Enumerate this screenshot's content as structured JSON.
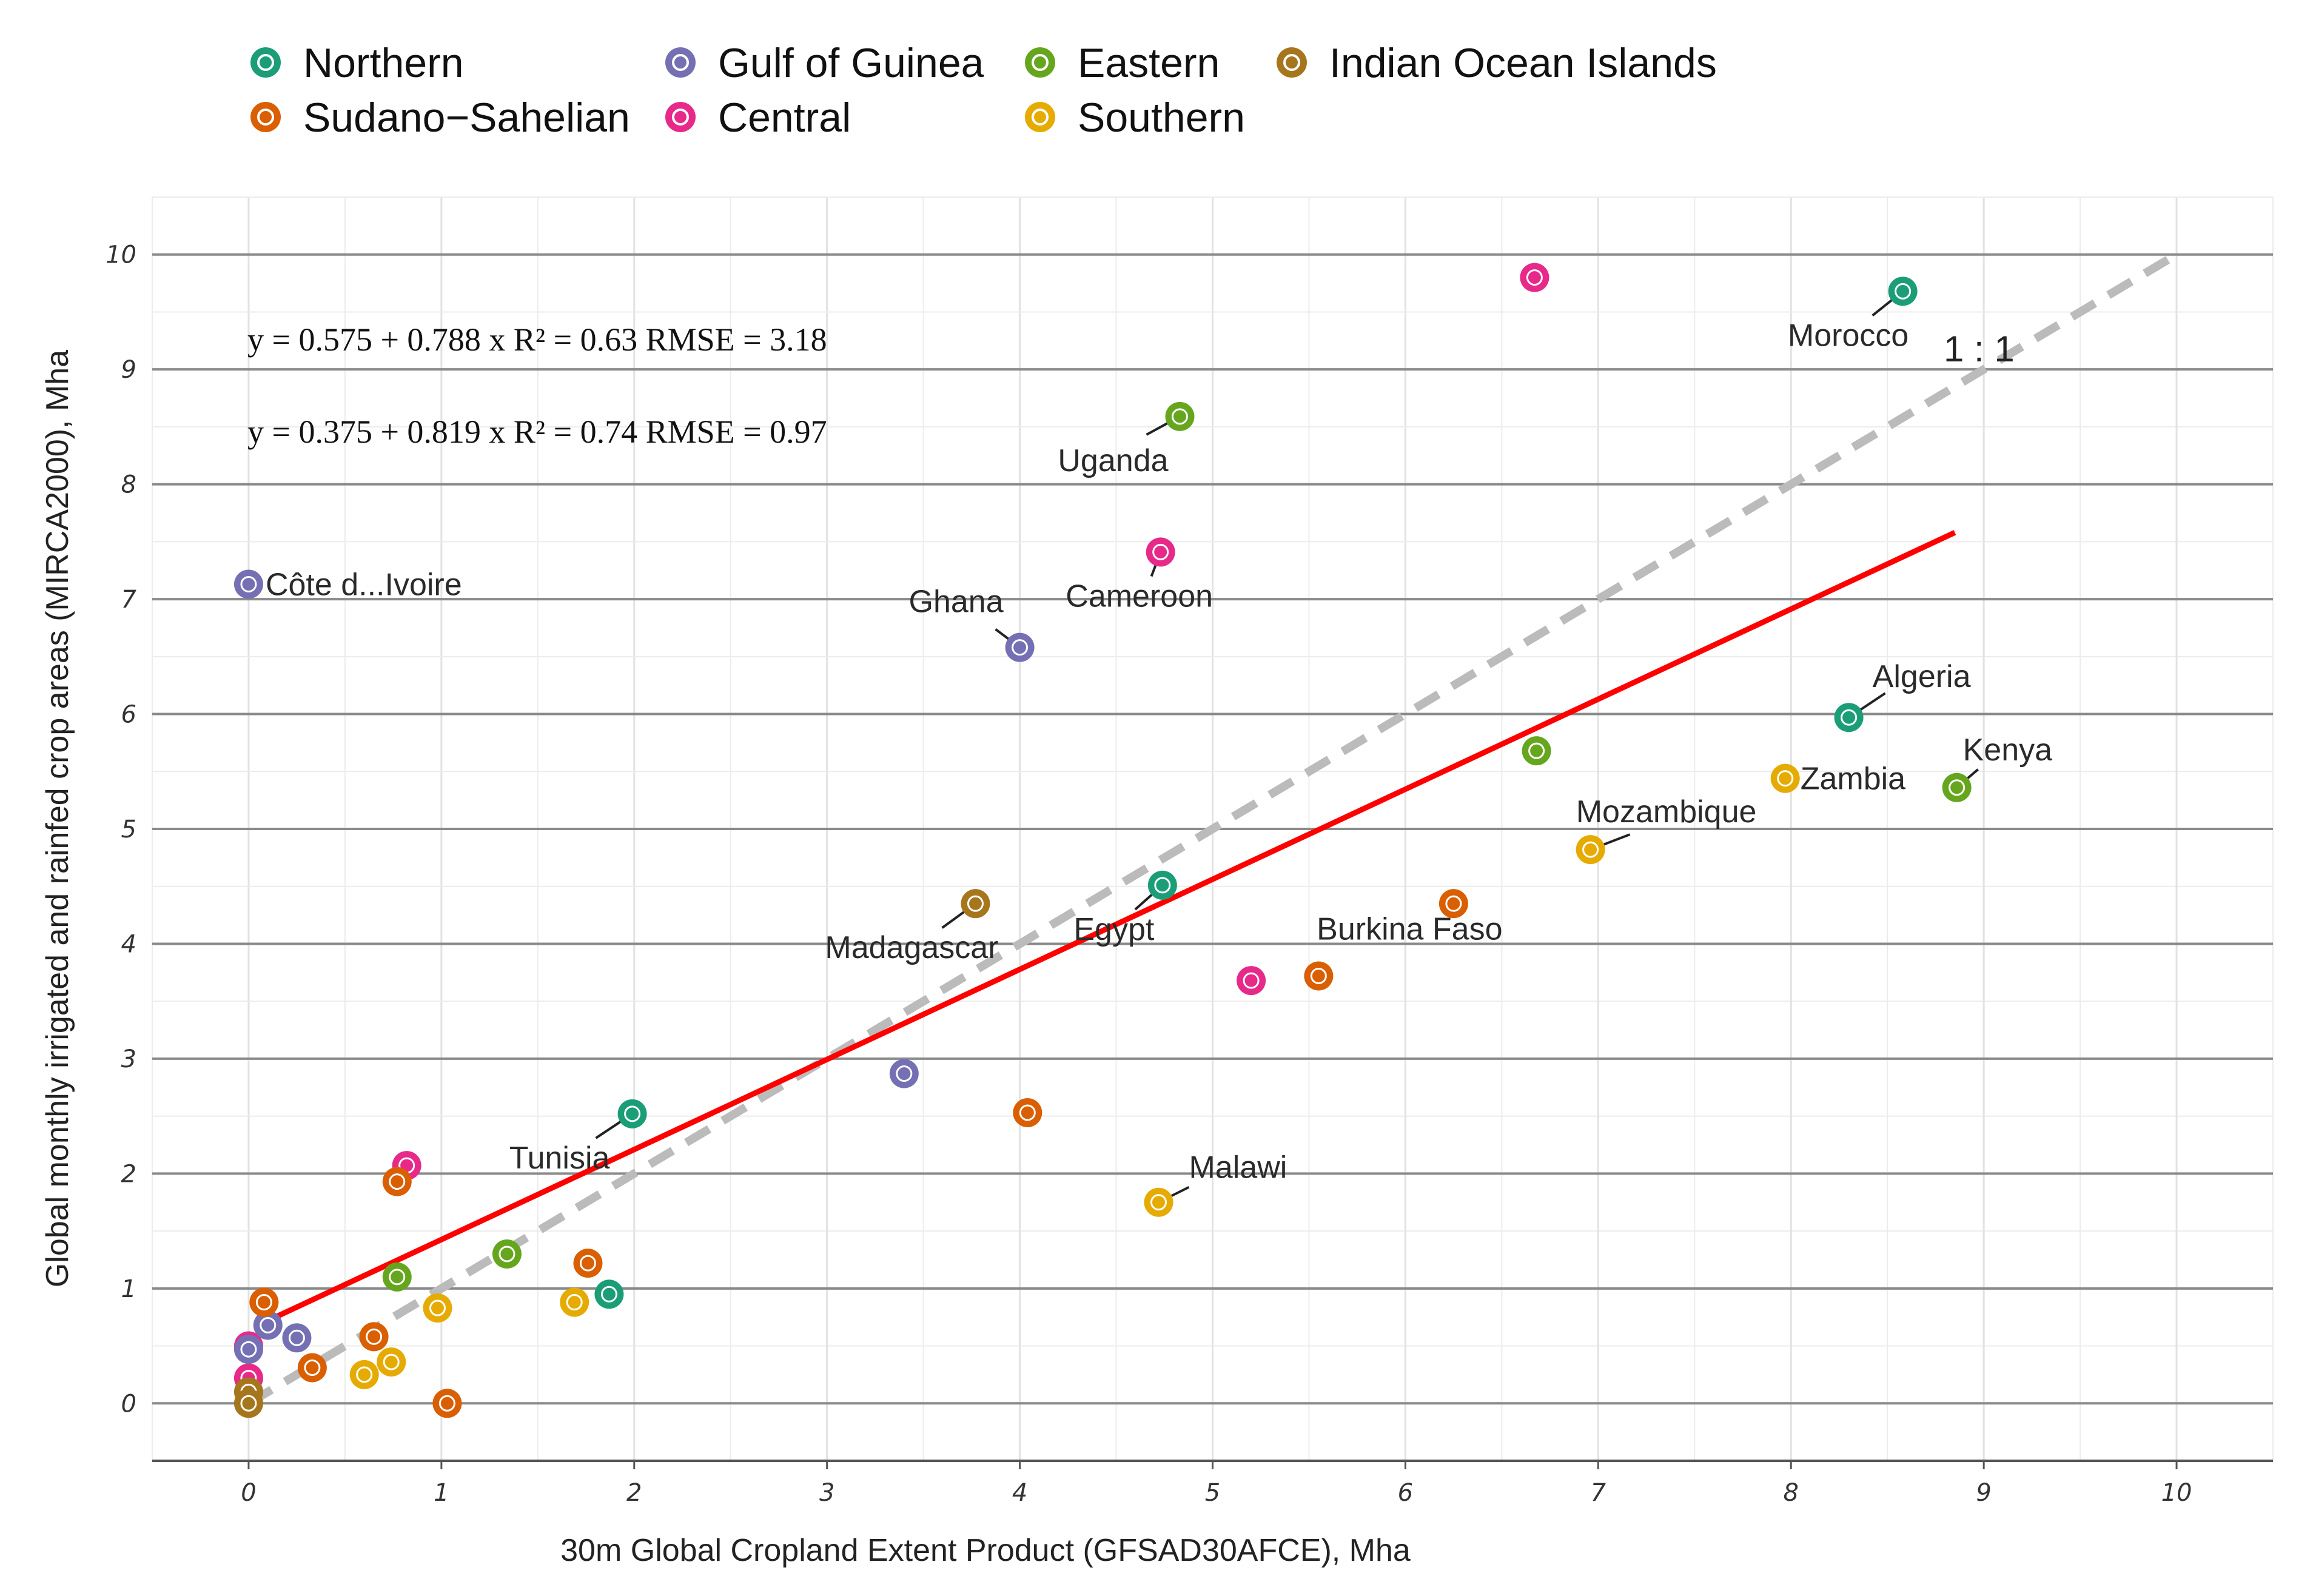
{
  "chart_data": {
    "type": "scatter",
    "xlabel": "30m Global Cropland Extent Product (GFSAD30AFCE), Mha",
    "ylabel": "Global monthly irrigated and rainfed crop areas (MIRCA2000), Mha",
    "xlim": [
      -0.5,
      10.5
    ],
    "ylim": [
      -0.5,
      10.5
    ],
    "x_ticks": [
      "0",
      "1",
      "2",
      "3",
      "4",
      "5",
      "6",
      "7",
      "8",
      "9",
      "10"
    ],
    "y_ticks": [
      "0",
      "1",
      "2",
      "3",
      "4",
      "5",
      "6",
      "7",
      "8",
      "9",
      "10"
    ],
    "grid": true,
    "legend_position": "top",
    "legend": [
      {
        "key": "northern",
        "label": "Northern",
        "color": "#1b9e77"
      },
      {
        "key": "sudano",
        "label": "Sudano−Sahelian",
        "color": "#d95f02"
      },
      {
        "key": "guinea",
        "label": "Gulf of Guinea",
        "color": "#7570b3"
      },
      {
        "key": "central",
        "label": "Central",
        "color": "#e7298a"
      },
      {
        "key": "eastern",
        "label": "Eastern",
        "color": "#66a61e"
      },
      {
        "key": "southern",
        "label": "Southern",
        "color": "#e6ab02"
      },
      {
        "key": "indian",
        "label": "Indian Ocean Islands",
        "color": "#a6761d"
      }
    ],
    "equations": [
      {
        "text": "y = 0.575 + 0.788 x   R² = 0.63   RMSE = 3.18"
      },
      {
        "text": "y = 0.375 + 0.819 x   R² = 0.74   RMSE = 0.97"
      }
    ],
    "identity_label": "1 : 1",
    "identity_line": {
      "from": [
        0,
        0
      ],
      "to": [
        10,
        10
      ],
      "color": "#bbbbbb"
    },
    "regression_line": {
      "from": [
        0.1,
        0.72
      ],
      "to": [
        8.85,
        7.58
      ],
      "color": "#ff0000"
    },
    "points": [
      {
        "x": 8.58,
        "y": 9.68,
        "region": "northern",
        "label": "Morocco"
      },
      {
        "x": 8.3,
        "y": 5.97,
        "region": "northern",
        "label": "Algeria"
      },
      {
        "x": 4.74,
        "y": 4.51,
        "region": "northern",
        "label": "Egypt"
      },
      {
        "x": 1.99,
        "y": 2.52,
        "region": "northern",
        "label": "Tunisia"
      },
      {
        "x": 1.87,
        "y": 0.95,
        "region": "northern",
        "label": ""
      },
      {
        "x": 6.67,
        "y": 9.8,
        "region": "central",
        "label": ""
      },
      {
        "x": 4.73,
        "y": 7.41,
        "region": "central",
        "label": "Cameroon"
      },
      {
        "x": 5.2,
        "y": 3.68,
        "region": "central",
        "label": ""
      },
      {
        "x": 0.82,
        "y": 2.07,
        "region": "central",
        "label": ""
      },
      {
        "x": 0.0,
        "y": 0.5,
        "region": "central",
        "label": ""
      },
      {
        "x": 0.0,
        "y": 0.22,
        "region": "central",
        "label": ""
      },
      {
        "x": 4.83,
        "y": 8.59,
        "region": "eastern",
        "label": "Uganda"
      },
      {
        "x": 6.68,
        "y": 5.68,
        "region": "eastern",
        "label": ""
      },
      {
        "x": 8.86,
        "y": 5.36,
        "region": "eastern",
        "label": "Kenya"
      },
      {
        "x": 1.34,
        "y": 1.3,
        "region": "eastern",
        "label": ""
      },
      {
        "x": 0.77,
        "y": 1.1,
        "region": "eastern",
        "label": ""
      },
      {
        "x": 0.0,
        "y": 7.13,
        "region": "guinea",
        "label": "Côte d...Ivoire"
      },
      {
        "x": 4.0,
        "y": 6.58,
        "region": "guinea",
        "label": "Ghana"
      },
      {
        "x": 3.4,
        "y": 2.87,
        "region": "guinea",
        "label": ""
      },
      {
        "x": 0.1,
        "y": 0.68,
        "region": "guinea",
        "label": ""
      },
      {
        "x": 0.25,
        "y": 0.57,
        "region": "guinea",
        "label": ""
      },
      {
        "x": 0.0,
        "y": 0.47,
        "region": "guinea",
        "label": ""
      },
      {
        "x": 3.77,
        "y": 4.35,
        "region": "indian",
        "label": "Madagascar"
      },
      {
        "x": 0.0,
        "y": 0.1,
        "region": "indian",
        "label": ""
      },
      {
        "x": 0.0,
        "y": 0.0,
        "region": "indian",
        "label": ""
      },
      {
        "x": 6.25,
        "y": 4.35,
        "region": "sudano",
        "label": ""
      },
      {
        "x": 5.55,
        "y": 3.72,
        "region": "sudano",
        "label": "Burkina Faso"
      },
      {
        "x": 4.04,
        "y": 2.53,
        "region": "sudano",
        "label": ""
      },
      {
        "x": 0.77,
        "y": 1.93,
        "region": "sudano",
        "label": ""
      },
      {
        "x": 1.76,
        "y": 1.22,
        "region": "sudano",
        "label": ""
      },
      {
        "x": 0.08,
        "y": 0.88,
        "region": "sudano",
        "label": ""
      },
      {
        "x": 0.65,
        "y": 0.58,
        "region": "sudano",
        "label": ""
      },
      {
        "x": 0.33,
        "y": 0.31,
        "region": "sudano",
        "label": ""
      },
      {
        "x": 1.03,
        "y": 0.0,
        "region": "sudano",
        "label": ""
      },
      {
        "x": 7.97,
        "y": 5.44,
        "region": "southern",
        "label": "Zambia"
      },
      {
        "x": 6.96,
        "y": 4.82,
        "region": "southern",
        "label": "Mozambique"
      },
      {
        "x": 4.72,
        "y": 1.75,
        "region": "southern",
        "label": "Malawi"
      },
      {
        "x": 0.98,
        "y": 0.83,
        "region": "southern",
        "label": ""
      },
      {
        "x": 1.69,
        "y": 0.88,
        "region": "southern",
        "label": ""
      },
      {
        "x": 0.6,
        "y": 0.25,
        "region": "southern",
        "label": ""
      },
      {
        "x": 0.74,
        "y": 0.36,
        "region": "southern",
        "label": ""
      }
    ]
  }
}
